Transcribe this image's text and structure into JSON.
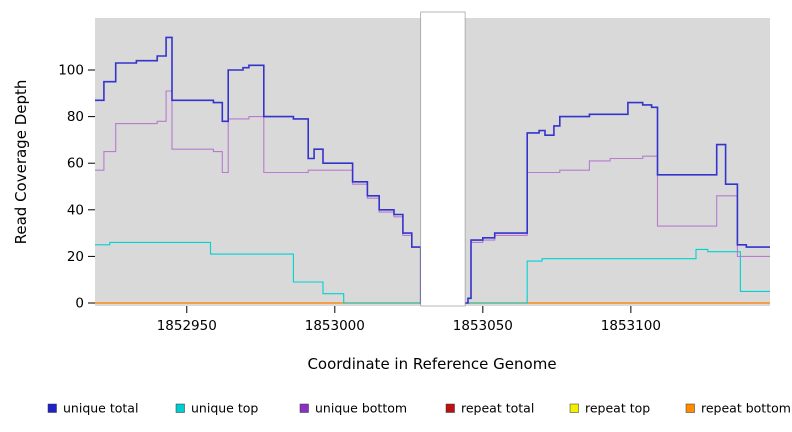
{
  "figure": {
    "background": "#ffffff",
    "plot_background": "#d9d9d9"
  },
  "chart_data": {
    "type": "line",
    "step": true,
    "title": "",
    "xlabel": "Coordinate in Reference Genome",
    "ylabel": "Read Coverage Depth",
    "xlim": [
      1852919,
      1853147
    ],
    "ylim": [
      0,
      122
    ],
    "x_ticks": [
      1852950,
      1853000,
      1853050,
      1853100
    ],
    "y_ticks": [
      0,
      20,
      40,
      60,
      80,
      100
    ],
    "grid": false,
    "legend_position": "bottom",
    "gap_band": {
      "from": 1853029,
      "to": 1853044,
      "color": "#ffffff"
    },
    "series": [
      {
        "name": "repeat top",
        "color": "#f0f000",
        "width": 1.0,
        "points": [
          [
            1852919,
            0
          ],
          [
            1853147,
            0
          ]
        ]
      },
      {
        "name": "repeat total",
        "color": "#c01414",
        "width": 1.0,
        "points": [
          [
            1852919,
            0
          ],
          [
            1853147,
            0
          ]
        ]
      },
      {
        "name": "repeat bottom",
        "color": "#ff8c1a",
        "width": 1.4,
        "points": [
          [
            1852919,
            0
          ],
          [
            1853147,
            0
          ]
        ]
      },
      {
        "name": "unique top",
        "color": "#00d2d2",
        "width": 1.1,
        "points": [
          [
            1852919,
            25
          ],
          [
            1852924,
            26
          ],
          [
            1852956,
            26
          ],
          [
            1852958,
            21
          ],
          [
            1852984,
            21
          ],
          [
            1852986,
            9
          ],
          [
            1852994,
            9
          ],
          [
            1852996,
            4
          ],
          [
            1853001,
            4
          ],
          [
            1853003,
            0
          ],
          [
            1853063,
            0
          ],
          [
            1853065,
            18
          ],
          [
            1853070,
            19
          ],
          [
            1853120,
            19
          ],
          [
            1853122,
            23
          ],
          [
            1853126,
            22
          ],
          [
            1853135,
            22
          ],
          [
            1853137,
            5
          ]
        ]
      },
      {
        "name": "unique bottom",
        "color": "#b87bd0",
        "width": 1.1,
        "points": [
          [
            1852919,
            57
          ],
          [
            1852922,
            65
          ],
          [
            1852926,
            77
          ],
          [
            1852940,
            78
          ],
          [
            1852943,
            91
          ],
          [
            1852945,
            66
          ],
          [
            1852957,
            66
          ],
          [
            1852959,
            65
          ],
          [
            1852962,
            56
          ],
          [
            1852964,
            79
          ],
          [
            1852971,
            80
          ],
          [
            1852976,
            56
          ],
          [
            1852991,
            57
          ],
          [
            1853003,
            57
          ],
          [
            1853006,
            51
          ],
          [
            1853011,
            45
          ],
          [
            1853015,
            39
          ],
          [
            1853020,
            37
          ],
          [
            1853023,
            29
          ],
          [
            1853026,
            24
          ],
          [
            1853029,
            0
          ],
          [
            1853043,
            0
          ],
          [
            1853045,
            2
          ],
          [
            1853046,
            26
          ],
          [
            1853050,
            27
          ],
          [
            1853054,
            29
          ],
          [
            1853063,
            29
          ],
          [
            1853065,
            56
          ],
          [
            1853073,
            56
          ],
          [
            1853076,
            57
          ],
          [
            1853082,
            57
          ],
          [
            1853086,
            61
          ],
          [
            1853093,
            62
          ],
          [
            1853104,
            63
          ],
          [
            1853109,
            33
          ],
          [
            1853126,
            33
          ],
          [
            1853129,
            46
          ],
          [
            1853134,
            46
          ],
          [
            1853136,
            20
          ],
          [
            1853139,
            20
          ]
        ]
      },
      {
        "name": "unique total",
        "color": "#3434cd",
        "width": 1.6,
        "points": [
          [
            1852919,
            87
          ],
          [
            1852922,
            95
          ],
          [
            1852926,
            103
          ],
          [
            1852933,
            104
          ],
          [
            1852940,
            106
          ],
          [
            1852943,
            114
          ],
          [
            1852945,
            87
          ],
          [
            1852957,
            87
          ],
          [
            1852959,
            86
          ],
          [
            1852962,
            78
          ],
          [
            1852964,
            100
          ],
          [
            1852969,
            101
          ],
          [
            1852971,
            102
          ],
          [
            1852976,
            80
          ],
          [
            1852984,
            80
          ],
          [
            1852986,
            79
          ],
          [
            1852991,
            62
          ],
          [
            1852993,
            66
          ],
          [
            1852996,
            60
          ],
          [
            1853003,
            60
          ],
          [
            1853006,
            52
          ],
          [
            1853011,
            46
          ],
          [
            1853015,
            40
          ],
          [
            1853020,
            38
          ],
          [
            1853023,
            30
          ],
          [
            1853026,
            24
          ],
          [
            1853029,
            0
          ],
          [
            1853043,
            0
          ],
          [
            1853045,
            2
          ],
          [
            1853046,
            27
          ],
          [
            1853050,
            28
          ],
          [
            1853054,
            30
          ],
          [
            1853063,
            30
          ],
          [
            1853065,
            73
          ],
          [
            1853069,
            74
          ],
          [
            1853071,
            72
          ],
          [
            1853074,
            76
          ],
          [
            1853076,
            80
          ],
          [
            1853082,
            80
          ],
          [
            1853086,
            81
          ],
          [
            1853097,
            81
          ],
          [
            1853099,
            86
          ],
          [
            1853104,
            85
          ],
          [
            1853107,
            84
          ],
          [
            1853109,
            55
          ],
          [
            1853126,
            55
          ],
          [
            1853129,
            68
          ],
          [
            1853132,
            51
          ],
          [
            1853136,
            25
          ],
          [
            1853139,
            24
          ]
        ]
      }
    ],
    "legend": [
      {
        "label": "unique total",
        "color": "#2121c8"
      },
      {
        "label": "unique top",
        "color": "#00cdcd"
      },
      {
        "label": "unique bottom",
        "color": "#8b30c0"
      },
      {
        "label": "repeat total",
        "color": "#bb1111"
      },
      {
        "label": "repeat top",
        "color": "#f0f000"
      },
      {
        "label": "repeat bottom",
        "color": "#ff8c00"
      }
    ]
  }
}
